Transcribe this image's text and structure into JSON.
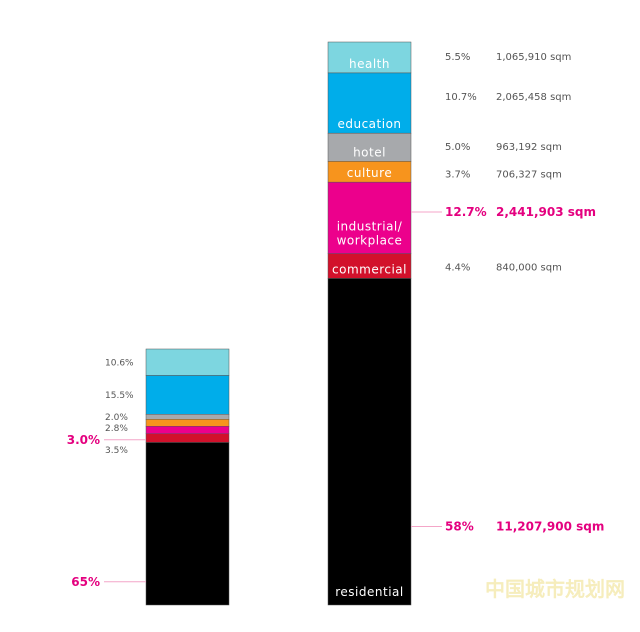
{
  "chart_data": {
    "type": "bar",
    "stacked": true,
    "categories": [
      "",
      ""
    ],
    "colors": {
      "health": "#7dd6e0",
      "education": "#00adea",
      "hotel": "#a7a9ac",
      "culture": "#f7941d",
      "industrial": "#ec008c",
      "commercial": "#d2112b",
      "residential": "#000000",
      "highlight": "#e4007f",
      "text": "#555555"
    },
    "left_bar": {
      "segments": [
        {
          "key": "health",
          "color": "#7dd6e0",
          "percent": 10.6,
          "label": "10.6%"
        },
        {
          "key": "education",
          "color": "#00adea",
          "percent": 15.5,
          "label": "15.5%"
        },
        {
          "key": "hotel",
          "color": "#a7a9ac",
          "percent": 2.0,
          "label": "2.0%"
        },
        {
          "key": "culture",
          "color": "#f7941d",
          "percent": 2.8,
          "label": "2.8%"
        },
        {
          "key": "industrial",
          "color": "#ec008c",
          "percent": 3.0,
          "label": "3.0%",
          "highlight": true
        },
        {
          "key": "commercial",
          "color": "#d2112b",
          "percent": 3.5,
          "label": "3.5%"
        },
        {
          "key": "residential",
          "color": "#000000",
          "percent": 65,
          "label": "65%",
          "highlight": true
        }
      ]
    },
    "right_bar": {
      "segments": [
        {
          "key": "health",
          "name": "health",
          "color": "#7dd6e0",
          "percent": 5.5,
          "label": "5.5%",
          "area": "1,065,910 sqm"
        },
        {
          "key": "education",
          "name": "education",
          "color": "#00adea",
          "percent": 10.7,
          "label": "10.7%",
          "area": "2,065,458 sqm"
        },
        {
          "key": "hotel",
          "name": "hotel",
          "color": "#a7a9ac",
          "percent": 5.0,
          "label": "5.0%",
          "area": "963,192 sqm"
        },
        {
          "key": "culture",
          "name": "culture",
          "color": "#f7941d",
          "percent": 3.7,
          "label": "3.7%",
          "area": "706,327 sqm"
        },
        {
          "key": "industrial",
          "name": "industrial/",
          "name2": "workplace",
          "color": "#ec008c",
          "percent": 12.7,
          "label": "12.7%",
          "area": "2,441,903 sqm",
          "highlight": true
        },
        {
          "key": "commercial",
          "name": "commercial",
          "color": "#d2112b",
          "percent": 4.4,
          "label": "4.4%",
          "area": "840,000 sqm"
        },
        {
          "key": "residential",
          "name": "residential",
          "color": "#000000",
          "percent": 58,
          "label": "58%",
          "area": "11,207,900 sqm",
          "highlight": true
        }
      ]
    }
  },
  "watermark": "中国城市规划网"
}
